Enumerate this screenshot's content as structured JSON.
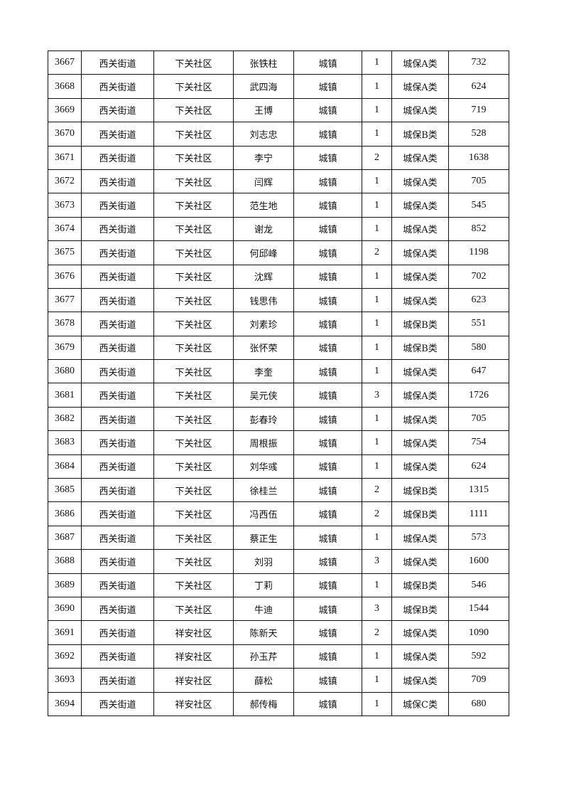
{
  "rows": [
    [
      "3667",
      "西关街道",
      "下关社区",
      "张铁柱",
      "城镇",
      "1",
      "城保A类",
      "732"
    ],
    [
      "3668",
      "西关街道",
      "下关社区",
      "武四海",
      "城镇",
      "1",
      "城保A类",
      "624"
    ],
    [
      "3669",
      "西关街道",
      "下关社区",
      "王博",
      "城镇",
      "1",
      "城保A类",
      "719"
    ],
    [
      "3670",
      "西关街道",
      "下关社区",
      "刘志忠",
      "城镇",
      "1",
      "城保B类",
      "528"
    ],
    [
      "3671",
      "西关街道",
      "下关社区",
      "李宁",
      "城镇",
      "2",
      "城保A类",
      "1638"
    ],
    [
      "3672",
      "西关街道",
      "下关社区",
      "闫辉",
      "城镇",
      "1",
      "城保A类",
      "705"
    ],
    [
      "3673",
      "西关街道",
      "下关社区",
      "范生地",
      "城镇",
      "1",
      "城保A类",
      "545"
    ],
    [
      "3674",
      "西关街道",
      "下关社区",
      "谢龙",
      "城镇",
      "1",
      "城保A类",
      "852"
    ],
    [
      "3675",
      "西关街道",
      "下关社区",
      "何邱峰",
      "城镇",
      "2",
      "城保A类",
      "1198"
    ],
    [
      "3676",
      "西关街道",
      "下关社区",
      "沈辉",
      "城镇",
      "1",
      "城保A类",
      "702"
    ],
    [
      "3677",
      "西关街道",
      "下关社区",
      "钱思伟",
      "城镇",
      "1",
      "城保A类",
      "623"
    ],
    [
      "3678",
      "西关街道",
      "下关社区",
      "刘素珍",
      "城镇",
      "1",
      "城保B类",
      "551"
    ],
    [
      "3679",
      "西关街道",
      "下关社区",
      "张怀荣",
      "城镇",
      "1",
      "城保B类",
      "580"
    ],
    [
      "3680",
      "西关街道",
      "下关社区",
      "李奎",
      "城镇",
      "1",
      "城保A类",
      "647"
    ],
    [
      "3681",
      "西关街道",
      "下关社区",
      "吴元侠",
      "城镇",
      "3",
      "城保A类",
      "1726"
    ],
    [
      "3682",
      "西关街道",
      "下关社区",
      "彭春玲",
      "城镇",
      "1",
      "城保A类",
      "705"
    ],
    [
      "3683",
      "西关街道",
      "下关社区",
      "周根振",
      "城镇",
      "1",
      "城保A类",
      "754"
    ],
    [
      "3684",
      "西关街道",
      "下关社区",
      "刘华彧",
      "城镇",
      "1",
      "城保A类",
      "624"
    ],
    [
      "3685",
      "西关街道",
      "下关社区",
      "徐桂兰",
      "城镇",
      "2",
      "城保B类",
      "1315"
    ],
    [
      "3686",
      "西关街道",
      "下关社区",
      "冯西伍",
      "城镇",
      "2",
      "城保B类",
      "1111"
    ],
    [
      "3687",
      "西关街道",
      "下关社区",
      "蔡正生",
      "城镇",
      "1",
      "城保A类",
      "573"
    ],
    [
      "3688",
      "西关街道",
      "下关社区",
      "刘羽",
      "城镇",
      "3",
      "城保A类",
      "1600"
    ],
    [
      "3689",
      "西关街道",
      "下关社区",
      "丁莉",
      "城镇",
      "1",
      "城保B类",
      "546"
    ],
    [
      "3690",
      "西关街道",
      "下关社区",
      "牛迪",
      "城镇",
      "3",
      "城保B类",
      "1544"
    ],
    [
      "3691",
      "西关街道",
      "祥安社区",
      "陈新天",
      "城镇",
      "2",
      "城保A类",
      "1090"
    ],
    [
      "3692",
      "西关街道",
      "祥安社区",
      "孙玉芹",
      "城镇",
      "1",
      "城保A类",
      "592"
    ],
    [
      "3693",
      "西关街道",
      "祥安社区",
      "薛松",
      "城镇",
      "1",
      "城保A类",
      "709"
    ],
    [
      "3694",
      "西关街道",
      "祥安社区",
      "郝传梅",
      "城镇",
      "1",
      "城保C类",
      "680"
    ]
  ]
}
